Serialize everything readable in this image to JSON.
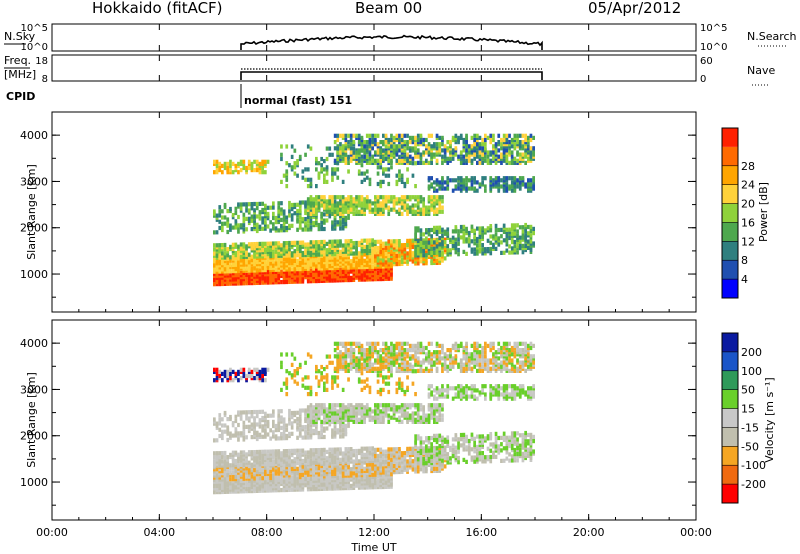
{
  "header": {
    "station": "Hokkaido (fitACF)",
    "beam": "Beam 00",
    "date": "05/Apr/2012"
  },
  "colors": {
    "power_scale": [
      "#0000ff",
      "#1f4fb0",
      "#2f7f7f",
      "#4ea84e",
      "#8fd23a",
      "#ffd23a",
      "#ffa500",
      "#ff6a00",
      "#ff2000"
    ],
    "velocity_scale": [
      "#0a1aa0",
      "#1a55c8",
      "#2f9a5a",
      "#69cf2a",
      "#c8c8c8",
      "#c0bfae",
      "#f5a623",
      "#f06a10",
      "#ff0000"
    ],
    "scatter_gray": "#c8c8c4"
  },
  "chart_data": [
    {
      "type": "line",
      "panel": "nsky",
      "left_label": "N.Sky",
      "right_label": "N.Search",
      "yticks_left": [
        "10^5",
        "10^0"
      ],
      "yticks_right": [
        "10^5",
        "10^0"
      ]
    },
    {
      "type": "line",
      "panel": "freq",
      "left_label": "Freq.",
      "left_unit": "[MHz]",
      "right_label": "Nave",
      "yticks_left": [
        "18",
        "8"
      ],
      "yticks_right": [
        "60",
        "0"
      ]
    },
    {
      "type": "annotation",
      "panel": "cpid",
      "label": "CPID",
      "mode_text": "normal (fast) 151",
      "start_time": "06:00"
    },
    {
      "type": "heatmap",
      "panel": "power",
      "ylabel": "Slant Range [km]",
      "yticks": [
        1000,
        2000,
        3000,
        4000
      ],
      "ylim": [
        180,
        4500
      ],
      "x_range": [
        "00:00",
        "24:00"
      ],
      "colorbar": {
        "label": "Power [dB]",
        "ticks": [
          4,
          8,
          12,
          16,
          20,
          24,
          28
        ],
        "range": [
          0,
          32
        ]
      }
    },
    {
      "type": "heatmap",
      "panel": "velocity",
      "ylabel": "Slant Range [km]",
      "yticks": [
        1000,
        2000,
        3000,
        4000
      ],
      "ylim": [
        180,
        4500
      ],
      "x_range": [
        "00:00",
        "24:00"
      ],
      "colorbar": {
        "label": "Velocity [m s⁻¹]",
        "ticks": [
          200,
          100,
          50,
          15,
          -15,
          -50,
          -100,
          -200
        ]
      }
    }
  ],
  "xaxis": {
    "label": "Time UT",
    "ticks": [
      "00:00",
      "04:00",
      "08:00",
      "12:00",
      "16:00",
      "20:00",
      "00:00"
    ]
  }
}
